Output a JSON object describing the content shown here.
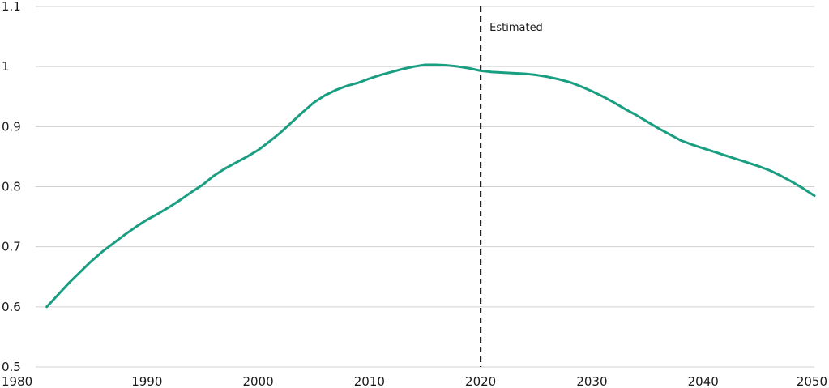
{
  "chart_data": {
    "type": "line",
    "title": "",
    "xlabel": "",
    "ylabel": "",
    "xlim": [
      1980,
      2050
    ],
    "ylim": [
      0.5,
      1.1
    ],
    "grid": "horizontal",
    "line_color": "#1a9e82",
    "marker_color": "#000000",
    "x_ticks": [
      {
        "value": 1980,
        "label": "1980"
      },
      {
        "value": 1990,
        "label": "1990"
      },
      {
        "value": 2000,
        "label": "2000"
      },
      {
        "value": 2010,
        "label": "2010"
      },
      {
        "value": 2020,
        "label": "2020"
      },
      {
        "value": 2030,
        "label": "2030"
      },
      {
        "value": 2040,
        "label": "2040"
      },
      {
        "value": 2050,
        "label": "2050"
      }
    ],
    "y_ticks": [
      {
        "value": 0.5,
        "label": "0.5"
      },
      {
        "value": 0.6,
        "label": "0.6"
      },
      {
        "value": 0.7,
        "label": "0.7"
      },
      {
        "value": 0.8,
        "label": "0.8"
      },
      {
        "value": 0.9,
        "label": "0.9"
      },
      {
        "value": 1.0,
        "label": "1"
      },
      {
        "value": 1.1,
        "label": "1.1"
      }
    ],
    "annotations": [
      {
        "type": "vline",
        "x": 2020,
        "style": "dashed",
        "label": "Estimated"
      }
    ],
    "series": [
      {
        "x": [
          1981,
          1982,
          1983,
          1984,
          1985,
          1986,
          1987,
          1988,
          1989,
          1990,
          1991,
          1992,
          1993,
          1994,
          1995,
          1996,
          1997,
          1998,
          1999,
          2000,
          2001,
          2002,
          2003,
          2004,
          2005,
          2006,
          2007,
          2008,
          2009,
          2010,
          2011,
          2012,
          2013,
          2014,
          2015,
          2016,
          2017,
          2018,
          2019,
          2020,
          2021,
          2022,
          2023,
          2024,
          2025,
          2026,
          2027,
          2028,
          2029,
          2030,
          2031,
          2032,
          2033,
          2034,
          2035,
          2036,
          2037,
          2038,
          2039,
          2040,
          2041,
          2042,
          2043,
          2044,
          2045,
          2046,
          2047,
          2048,
          2049,
          2050
        ],
        "y": [
          0.6,
          0.62,
          0.64,
          0.658,
          0.676,
          0.692,
          0.706,
          0.72,
          0.733,
          0.745,
          0.755,
          0.766,
          0.778,
          0.791,
          0.803,
          0.818,
          0.83,
          0.84,
          0.85,
          0.861,
          0.875,
          0.89,
          0.907,
          0.924,
          0.94,
          0.952,
          0.961,
          0.968,
          0.973,
          0.98,
          0.986,
          0.991,
          0.996,
          1.0,
          1.003,
          1.003,
          1.002,
          1.0,
          0.997,
          0.993,
          0.991,
          0.99,
          0.989,
          0.988,
          0.986,
          0.983,
          0.979,
          0.974,
          0.967,
          0.959,
          0.95,
          0.94,
          0.929,
          0.919,
          0.908,
          0.897,
          0.887,
          0.877,
          0.87,
          0.864,
          0.858,
          0.852,
          0.846,
          0.84,
          0.834,
          0.827,
          0.818,
          0.808,
          0.797,
          0.785
        ]
      }
    ]
  }
}
